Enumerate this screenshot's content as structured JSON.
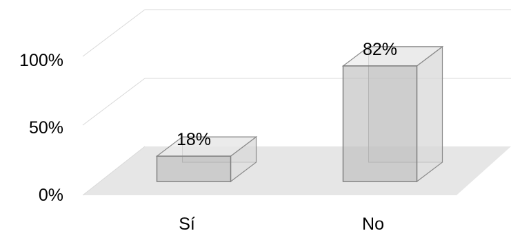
{
  "chart_data": {
    "type": "bar",
    "categories": [
      "Sí",
      "No"
    ],
    "values": [
      18,
      82
    ],
    "data_labels": [
      "18%",
      "82%"
    ],
    "ytick_labels": [
      "0%",
      "50%",
      "100%"
    ],
    "ylim": [
      0,
      100
    ],
    "grid": true,
    "style": "3d-column",
    "title": "",
    "xlabel": "",
    "ylabel": ""
  }
}
